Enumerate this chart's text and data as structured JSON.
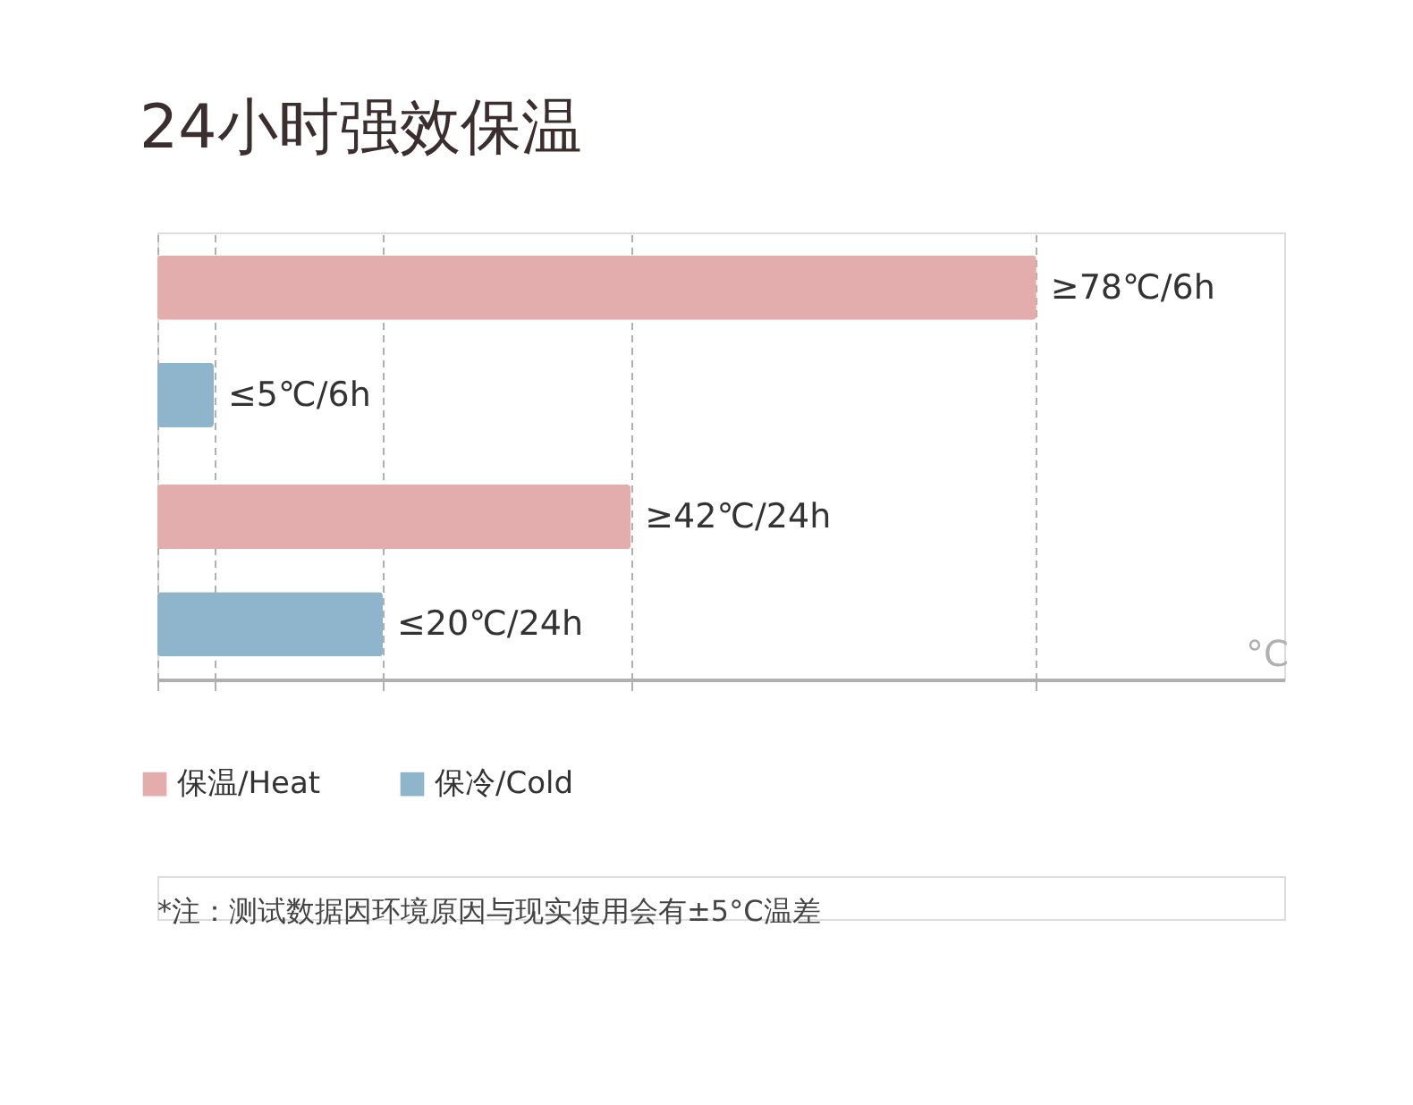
{
  "chart_data": {
    "type": "bar",
    "orientation": "horizontal",
    "title": "24小时强效保温",
    "xlabel": "°C",
    "categories": [
      null,
      null
    ],
    "series": [
      {
        "name": "保温/Heat",
        "color": "#e3adad",
        "values": [
          78,
          42
        ],
        "value_labels": [
          "≥78℃/6h",
          "≥42℃/24h"
        ]
      },
      {
        "name": "保冷/Cold",
        "color": "#8fb5cc",
        "values": [
          5,
          20
        ],
        "value_labels": [
          "≤5℃/6h",
          "≤20℃/24h"
        ]
      }
    ],
    "xlim": [
      0,
      100
    ],
    "xticks": [
      {
        "value": 0,
        "label": null
      },
      {
        "value": 5,
        "label": null
      },
      {
        "value": 20,
        "label": null
      },
      {
        "value": 42,
        "label": null
      },
      {
        "value": 78,
        "label": null
      }
    ],
    "grid": "x",
    "legend": "bottom",
    "annotations": [
      "*注：测试数据因环境原因与现实使用会有±5°C温差"
    ]
  }
}
